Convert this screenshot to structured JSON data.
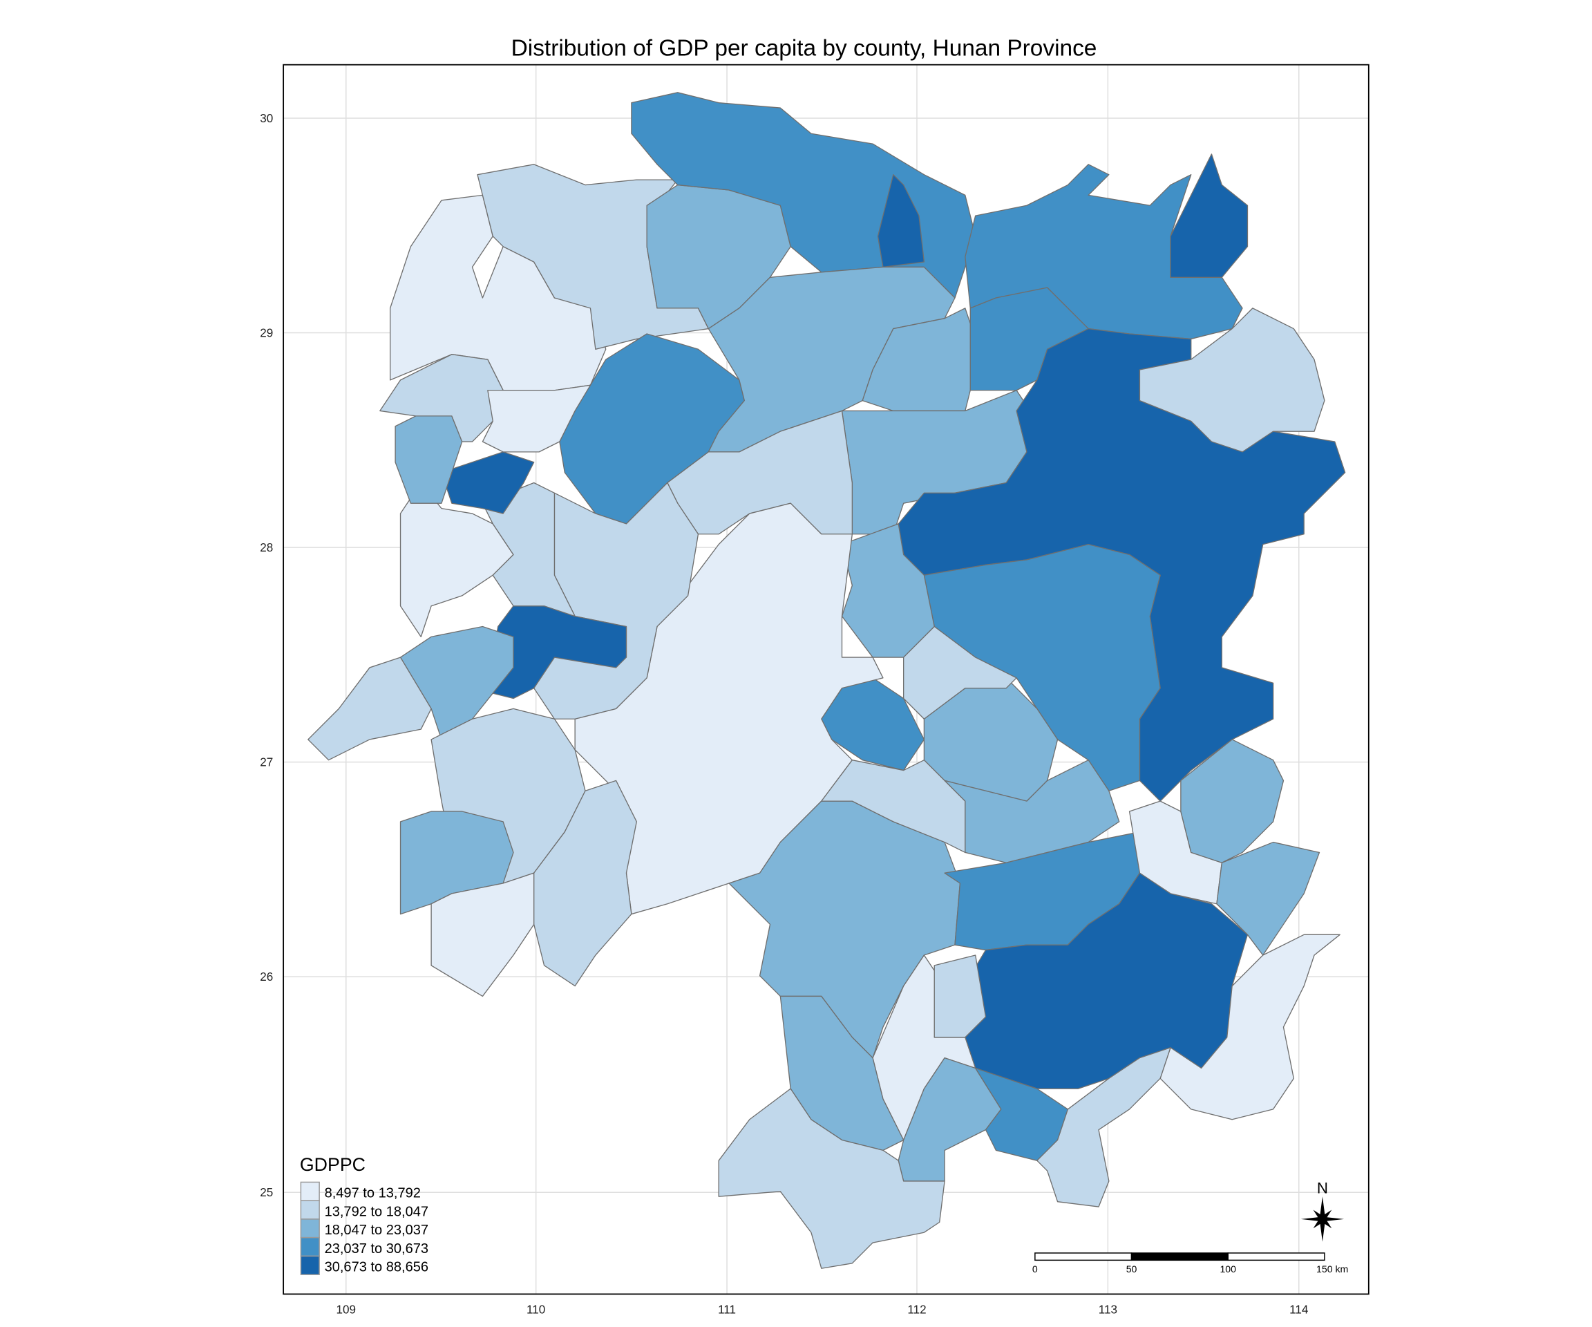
{
  "title": "Distribution of GDP per capita by county, Hunan Province",
  "axes": {
    "x_ticks": [
      "109",
      "110",
      "111",
      "112",
      "113",
      "114"
    ],
    "y_ticks": [
      "30",
      "29",
      "28",
      "27",
      "26",
      "25"
    ]
  },
  "legend": {
    "title": "GDPPC",
    "classes": [
      {
        "label": "8,497 to 13,792",
        "color": "#e3edf8"
      },
      {
        "label": "13,792 to 18,047",
        "color": "#c1d8eb"
      },
      {
        "label": "18,047 to 23,037",
        "color": "#7fb5d8"
      },
      {
        "label": "23,037 to 30,673",
        "color": "#4190c6"
      },
      {
        "label": "30,673 to 88,656",
        "color": "#1764ab"
      }
    ]
  },
  "scale_bar": {
    "labels": [
      "0",
      "50",
      "100",
      "150 km"
    ]
  },
  "north_arrow": {
    "label": "N"
  },
  "counties": [
    0,
    1,
    2,
    3,
    4,
    3,
    2,
    2,
    2,
    1,
    3,
    4,
    3,
    4,
    1,
    3,
    2,
    4,
    3,
    2,
    1,
    0,
    1,
    4,
    2,
    1,
    0,
    1,
    4,
    2,
    1,
    0,
    1,
    2,
    0,
    1,
    2,
    1,
    2,
    3,
    4,
    0,
    2,
    2,
    0,
    0,
    1,
    2,
    2,
    3,
    1,
    1
  ]
}
